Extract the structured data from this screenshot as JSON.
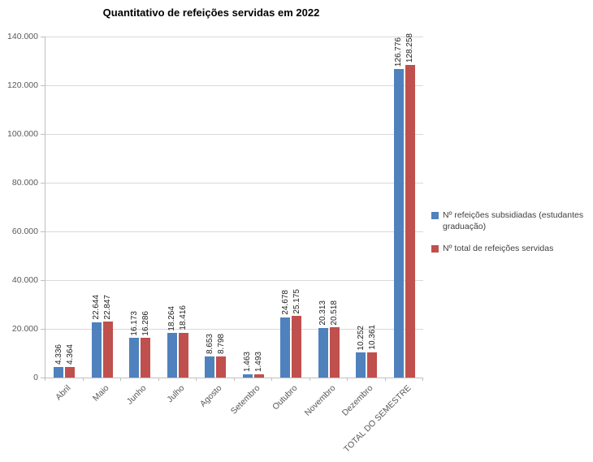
{
  "chart_data": {
    "type": "bar",
    "title": "Quantitativo de refeições servidas em 2022",
    "categories": [
      "Abril",
      "Maio",
      "Junho",
      "Julho",
      "Agosto",
      "Setembro",
      "Outubro",
      "Novembro",
      "Dezembro",
      "TOTAL DO SEMESTRE"
    ],
    "series": [
      {
        "name": "Nº refeições subsidiadas (estudantes graduação)",
        "color": "#4F81BD",
        "values": [
          4336,
          22644,
          16173,
          18264,
          8653,
          1463,
          24678,
          20313,
          10252,
          126776
        ],
        "labels": [
          "4.336",
          "22.644",
          "16.173",
          "18.264",
          "8.653",
          "1.463",
          "24.678",
          "20.313",
          "10.252",
          "126.776"
        ]
      },
      {
        "name": "Nº total de refeições servidas",
        "color": "#C0504D",
        "values": [
          4364,
          22847,
          16286,
          18416,
          8798,
          1493,
          25175,
          20518,
          10361,
          128258
        ],
        "labels": [
          "4.364",
          "22.847",
          "16.286",
          "18.416",
          "8.798",
          "1.493",
          "25.175",
          "20.518",
          "10.361",
          "128.258"
        ]
      }
    ],
    "ylim": [
      0,
      140000
    ],
    "yticks": [
      0,
      20000,
      40000,
      60000,
      80000,
      100000,
      120000,
      140000
    ],
    "ytick_labels": [
      "0",
      "20.000",
      "40.000",
      "60.000",
      "80.000",
      "100.000",
      "120.000",
      "140.000"
    ],
    "grid": true,
    "legend_position": "right",
    "data_labels": "rotated-90",
    "category_labels": "rotated-45"
  }
}
